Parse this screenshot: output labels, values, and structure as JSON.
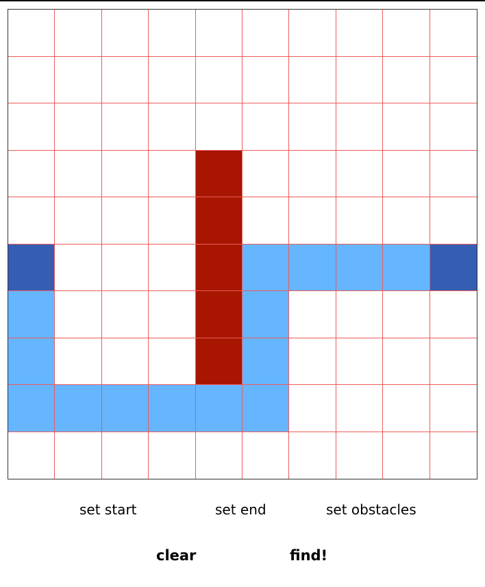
{
  "grid": {
    "rows": 10,
    "cols": 10,
    "colors": {
      "empty": "#ffffff",
      "obstacle": "#a81500",
      "path": "#66b5ff",
      "endpoint": "#355eb3",
      "line": "#ee5a5a"
    },
    "endpoints": [
      [
        5,
        0
      ],
      [
        5,
        9
      ]
    ],
    "obstacles": [
      [
        3,
        4
      ],
      [
        4,
        4
      ],
      [
        5,
        4
      ],
      [
        6,
        4
      ],
      [
        7,
        4
      ]
    ],
    "path": [
      [
        5,
        5
      ],
      [
        5,
        6
      ],
      [
        5,
        7
      ],
      [
        5,
        8
      ],
      [
        6,
        0
      ],
      [
        6,
        5
      ],
      [
        7,
        0
      ],
      [
        7,
        5
      ],
      [
        8,
        0
      ],
      [
        8,
        1
      ],
      [
        8,
        2
      ],
      [
        8,
        3
      ],
      [
        8,
        4
      ],
      [
        8,
        5
      ]
    ]
  },
  "controls": {
    "set_start": "set start",
    "set_end": "set end",
    "set_obstacles": "set obstacles",
    "clear": "clear",
    "find": "find!"
  }
}
